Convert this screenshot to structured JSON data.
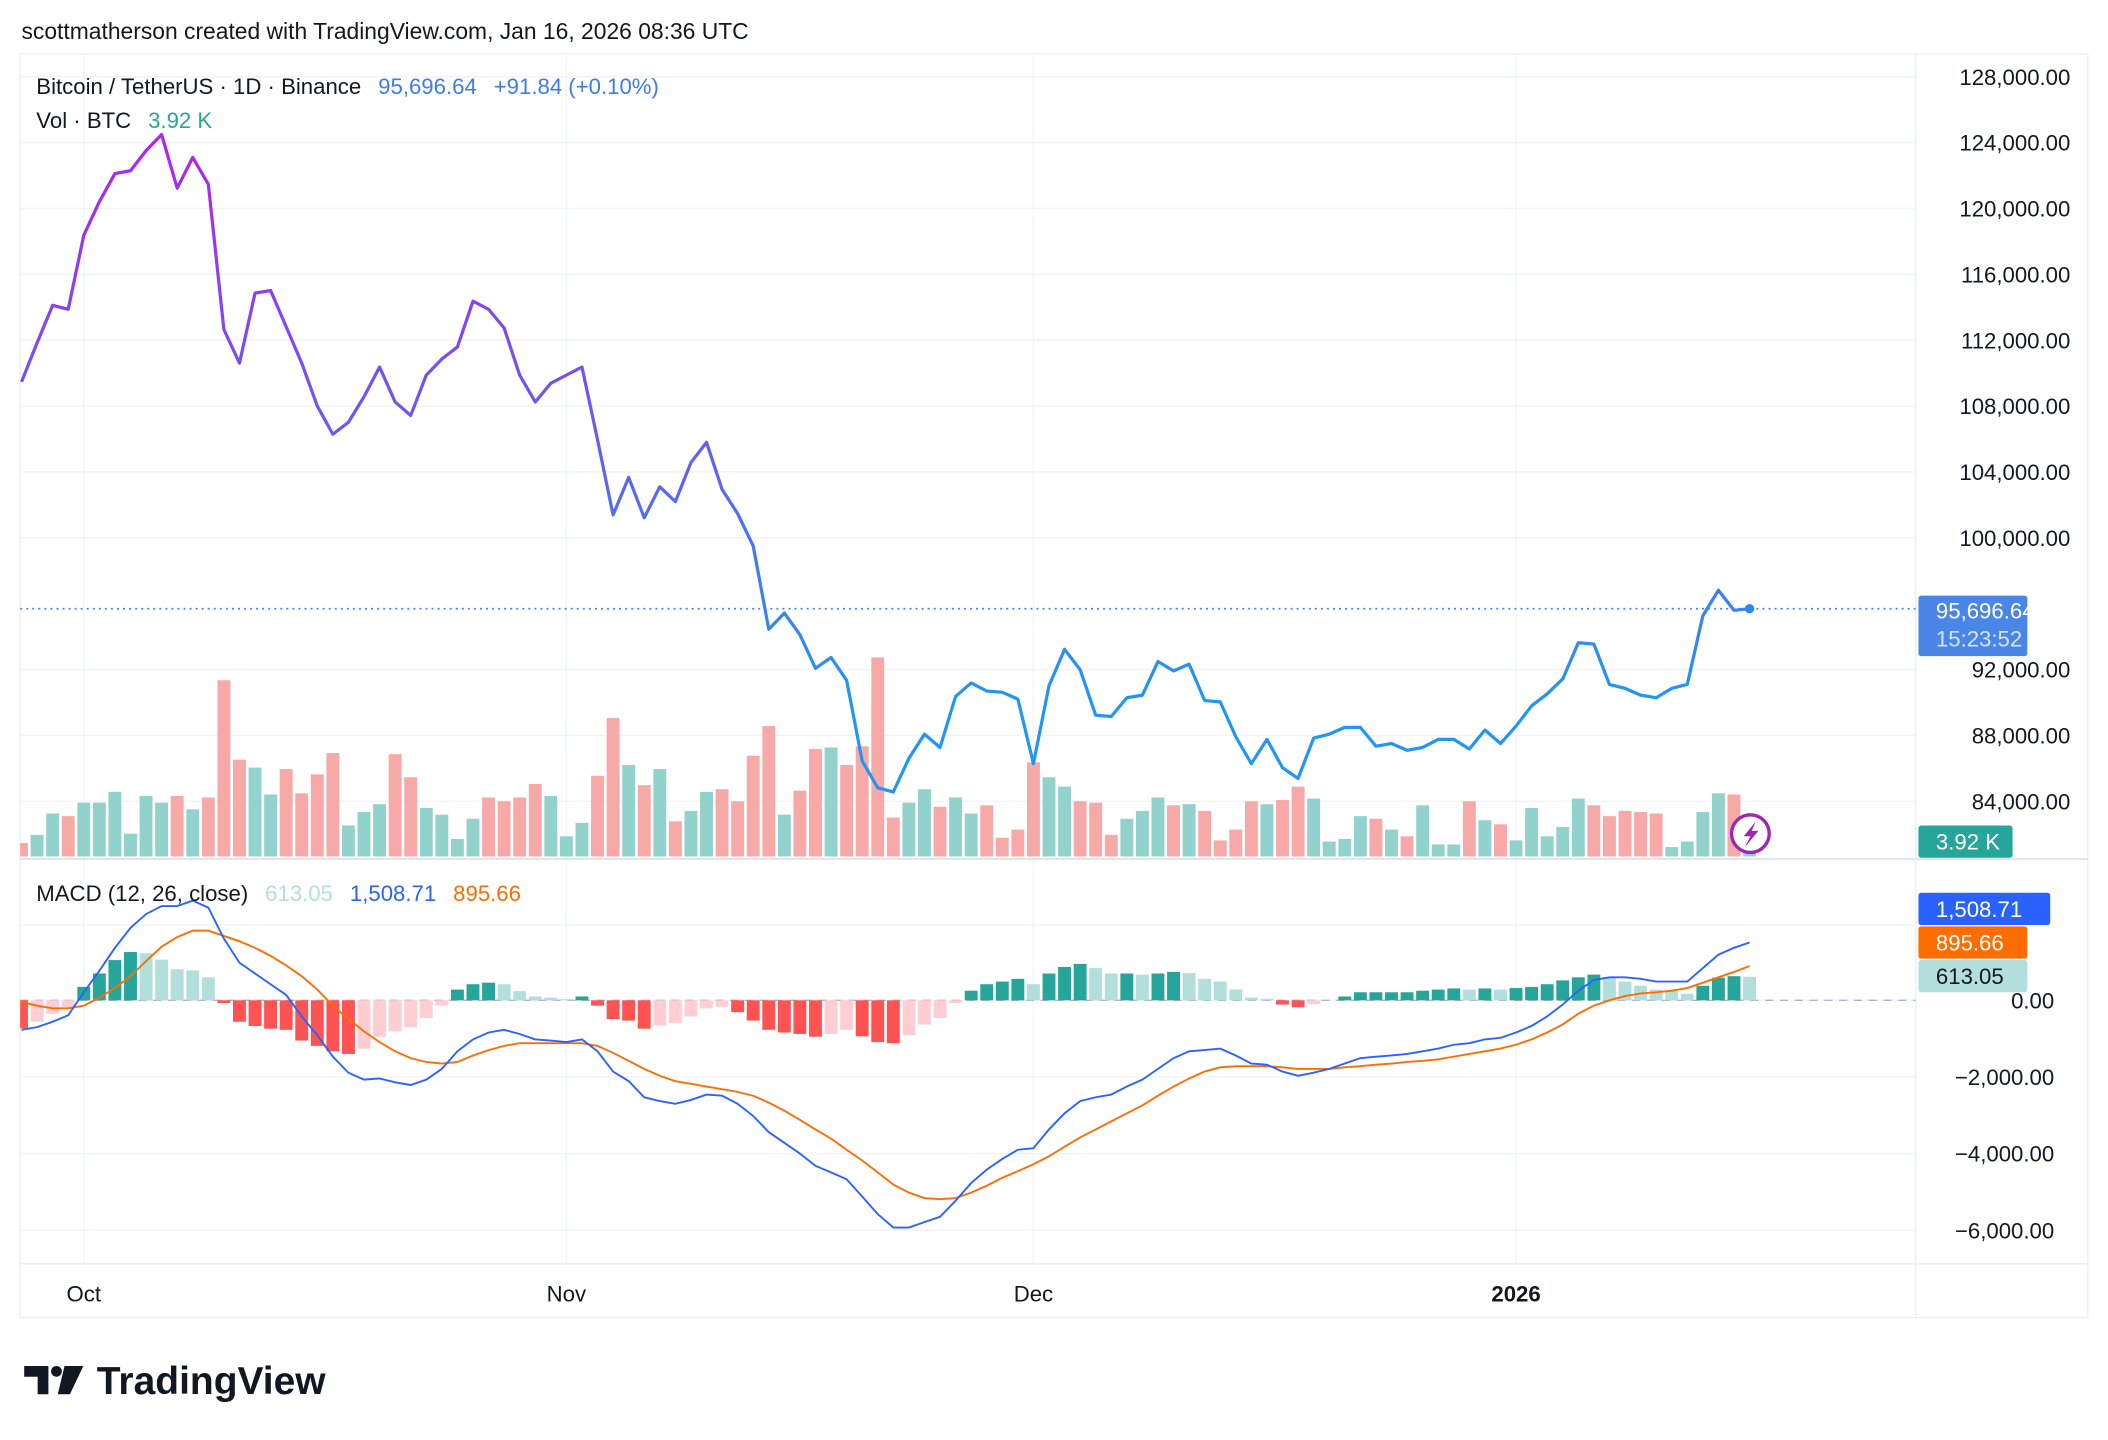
{
  "header": {
    "attribution": "scottmatherson created with TradingView.com, Jan 16, 2026 08:36 UTC"
  },
  "legend": {
    "symbol": "Bitcoin / TetherUS · 1D · Binance",
    "last_price": "95,696.64",
    "change": "+91.84 (+0.10%)",
    "vol_label": "Vol · BTC",
    "vol_value": "3.92 K",
    "macd_label": "MACD (12, 26, close)",
    "macd_hist": "613.05",
    "macd_line": "1,508.71",
    "macd_signal": "895.66"
  },
  "price_axis": {
    "last_price_label": "95,696.64",
    "countdown": "15:23:52",
    "volume_label": "3.92 K",
    "macd_line_label": "1,508.71",
    "macd_signal_label": "895.66",
    "macd_hist_label": "613.05"
  },
  "colors": {
    "price_line_top": "#b023f2",
    "price_line_bottom": "#2196f3",
    "volume_up": "#92d2cc",
    "volume_down": "#f7a9a7",
    "macd_line": "#2962ff",
    "signal_line": "#ff6d00",
    "hist_pos_grow": "#26a69a",
    "hist_pos_fall": "#b2dfdb",
    "hist_neg_fall": "#ff5252",
    "hist_neg_rise": "#ffcdd2",
    "last_price_bg": "#4a86e8",
    "volume_label_bg": "#26a69a",
    "alert_icon": "#9c27b0"
  },
  "logo": {
    "text": "TradingView"
  },
  "chart_data": {
    "type": "line",
    "title": "Bitcoin / TetherUS · 1D · Binance",
    "grid": true,
    "price_ylim": [
      82000,
      130000
    ],
    "price_ticks": [
      {
        "value": 128000,
        "label": "128,000.00"
      },
      {
        "value": 124000,
        "label": "124,000.00"
      },
      {
        "value": 120000,
        "label": "120,000.00"
      },
      {
        "value": 116000,
        "label": "116,000.00"
      },
      {
        "value": 112000,
        "label": "112,000.00"
      },
      {
        "value": 108000,
        "label": "108,000.00"
      },
      {
        "value": 104000,
        "label": "104,000.00"
      },
      {
        "value": 100000,
        "label": "100,000.00"
      },
      {
        "value": 92000,
        "label": "92,000.00"
      },
      {
        "value": 88000,
        "label": "88,000.00"
      },
      {
        "value": 84000,
        "label": "84,000.00"
      }
    ],
    "macd_ticks": [
      {
        "value": 0,
        "label": "0.00"
      },
      {
        "value": -2000,
        "label": "−2,000.00"
      },
      {
        "value": -4000,
        "label": "−4,000.00"
      },
      {
        "value": -6000,
        "label": "−6,000.00"
      }
    ],
    "x_ticks": [
      {
        "date": "2025-10-01",
        "label": "Oct",
        "bold": false
      },
      {
        "date": "2025-11-01",
        "label": "Nov",
        "bold": false
      },
      {
        "date": "2025-12-01",
        "label": "Dec",
        "bold": false
      },
      {
        "date": "2026-01-01",
        "label": "2026",
        "bold": true
      }
    ],
    "dates": [
      "2025-09-27",
      "2025-09-28",
      "2025-09-29",
      "2025-09-30",
      "2025-10-01",
      "2025-10-02",
      "2025-10-03",
      "2025-10-04",
      "2025-10-05",
      "2025-10-06",
      "2025-10-07",
      "2025-10-08",
      "2025-10-09",
      "2025-10-10",
      "2025-10-11",
      "2025-10-12",
      "2025-10-13",
      "2025-10-14",
      "2025-10-15",
      "2025-10-16",
      "2025-10-17",
      "2025-10-18",
      "2025-10-19",
      "2025-10-20",
      "2025-10-21",
      "2025-10-22",
      "2025-10-23",
      "2025-10-24",
      "2025-10-25",
      "2025-10-26",
      "2025-10-27",
      "2025-10-28",
      "2025-10-29",
      "2025-10-30",
      "2025-10-31",
      "2025-11-01",
      "2025-11-02",
      "2025-11-03",
      "2025-11-04",
      "2025-11-05",
      "2025-11-06",
      "2025-11-07",
      "2025-11-08",
      "2025-11-09",
      "2025-11-10",
      "2025-11-11",
      "2025-11-12",
      "2025-11-13",
      "2025-11-14",
      "2025-11-15",
      "2025-11-16",
      "2025-11-17",
      "2025-11-18",
      "2025-11-19",
      "2025-11-20",
      "2025-11-21",
      "2025-11-22",
      "2025-11-23",
      "2025-11-24",
      "2025-11-25",
      "2025-11-26",
      "2025-11-27",
      "2025-11-28",
      "2025-11-29",
      "2025-11-30",
      "2025-12-01",
      "2025-12-02",
      "2025-12-03",
      "2025-12-04",
      "2025-12-05",
      "2025-12-06",
      "2025-12-07",
      "2025-12-08",
      "2025-12-09",
      "2025-12-10",
      "2025-12-11",
      "2025-12-12",
      "2025-12-13",
      "2025-12-14",
      "2025-12-15",
      "2025-12-16",
      "2025-12-17",
      "2025-12-18",
      "2025-12-19",
      "2025-12-20",
      "2025-12-21",
      "2025-12-22",
      "2025-12-23",
      "2025-12-24",
      "2025-12-25",
      "2025-12-26",
      "2025-12-27",
      "2025-12-28",
      "2025-12-29",
      "2025-12-30",
      "2025-12-31",
      "2026-01-01",
      "2026-01-02",
      "2026-01-03",
      "2026-01-04",
      "2026-01-05",
      "2026-01-06",
      "2026-01-07",
      "2026-01-08",
      "2026-01-09",
      "2026-01-10",
      "2026-01-11",
      "2026-01-12",
      "2026-01-13",
      "2026-01-14",
      "2026-01-15",
      "2026-01-16"
    ],
    "close": [
      109470,
      111840,
      114120,
      113880,
      118370,
      120410,
      122120,
      122290,
      123510,
      124490,
      121230,
      123100,
      121470,
      112650,
      110610,
      114860,
      115020,
      112820,
      110610,
      108000,
      106290,
      107020,
      108570,
      110370,
      108250,
      107430,
      109880,
      110860,
      111590,
      114370,
      113880,
      112740,
      109880,
      108250,
      109390,
      109880,
      110370,
      105960,
      101390,
      103670,
      101220,
      103100,
      102200,
      104570,
      105800,
      102940,
      101470,
      99510,
      94450,
      95430,
      94120,
      92080,
      92740,
      91350,
      86450,
      84820,
      84570,
      86610,
      88080,
      87270,
      90370,
      91190,
      90700,
      90620,
      90210,
      86290,
      91020,
      93230,
      92000,
      89230,
      89150,
      90290,
      90450,
      92490,
      91920,
      92330,
      90120,
      90040,
      87920,
      86290,
      87760,
      86040,
      85390,
      87840,
      88080,
      88490,
      88490,
      87350,
      87510,
      87100,
      87270,
      87760,
      87760,
      87180,
      88330,
      87510,
      88570,
      89800,
      90530,
      91430,
      93630,
      93550,
      91100,
      90860,
      90450,
      90290,
      90860,
      91100,
      95270,
      96820,
      95600,
      95696.64
    ],
    "volume_k_btc": [
      4.6,
      7.4,
      14.7,
      13.8,
      18.4,
      18.4,
      22.1,
      7.8,
      20.7,
      18.4,
      20.7,
      16.1,
      20.2,
      60.3,
      33.1,
      30.4,
      21.2,
      29.9,
      21.6,
      28.1,
      35.4,
      10.6,
      15.2,
      17.9,
      35.0,
      27.1,
      16.6,
      14.3,
      6.0,
      12.9,
      20.2,
      18.9,
      20.2,
      24.8,
      20.7,
      6.9,
      11.5,
      27.6,
      47.4,
      31.3,
      24.4,
      29.9,
      12.0,
      15.6,
      22.1,
      23.0,
      18.9,
      34.5,
      44.6,
      14.3,
      22.5,
      36.8,
      37.3,
      31.3,
      37.7,
      68.1,
      13.3,
      18.4,
      23.0,
      17.0,
      20.2,
      14.7,
      17.5,
      6.4,
      9.2,
      32.2,
      27.1,
      23.9,
      18.9,
      18.4,
      7.4,
      12.9,
      15.6,
      20.2,
      17.5,
      17.9,
      15.6,
      5.5,
      9.2,
      18.9,
      17.9,
      19.3,
      23.9,
      19.8,
      5.1,
      6.0,
      13.8,
      12.9,
      9.2,
      6.9,
      17.5,
      4.1,
      4.1,
      18.9,
      12.4,
      11.0,
      5.5,
      16.6,
      6.9,
      10.1,
      19.8,
      17.5,
      13.8,
      15.6,
      15.2,
      14.7,
      3.2,
      5.1,
      15.2,
      21.6,
      21.2,
      3.92
    ],
    "macd": [
      -770,
      -700,
      -560,
      -390,
      210,
      770,
      1370,
      1890,
      2250,
      2460,
      2460,
      2600,
      2420,
      1610,
      980,
      700,
      420,
      140,
      -420,
      -910,
      -1470,
      -1890,
      -2070,
      -2040,
      -2140,
      -2210,
      -2070,
      -1790,
      -1330,
      -1020,
      -840,
      -770,
      -880,
      -1020,
      -1050,
      -1090,
      -1020,
      -1330,
      -1860,
      -2110,
      -2530,
      -2630,
      -2700,
      -2600,
      -2460,
      -2490,
      -2700,
      -3020,
      -3440,
      -3720,
      -4000,
      -4320,
      -4490,
      -4670,
      -5120,
      -5580,
      -5930,
      -5930,
      -5790,
      -5650,
      -5230,
      -4770,
      -4420,
      -4140,
      -3900,
      -3860,
      -3370,
      -2950,
      -2630,
      -2530,
      -2460,
      -2250,
      -2070,
      -1790,
      -1510,
      -1330,
      -1300,
      -1260,
      -1440,
      -1650,
      -1680,
      -1860,
      -1970,
      -1890,
      -1790,
      -1650,
      -1510,
      -1470,
      -1440,
      -1400,
      -1330,
      -1260,
      -1160,
      -1120,
      -1020,
      -980,
      -840,
      -670,
      -420,
      -110,
      250,
      530,
      600,
      600,
      560,
      490,
      490,
      490,
      840,
      1190,
      1370,
      1508.71
    ],
    "signal": [
      -40,
      -140,
      -210,
      -210,
      -140,
      70,
      320,
      630,
      1020,
      1400,
      1650,
      1820,
      1820,
      1680,
      1540,
      1370,
      1160,
      910,
      630,
      280,
      -140,
      -490,
      -810,
      -1090,
      -1330,
      -1510,
      -1610,
      -1650,
      -1610,
      -1440,
      -1300,
      -1190,
      -1120,
      -1120,
      -1120,
      -1120,
      -1120,
      -1190,
      -1370,
      -1580,
      -1790,
      -1970,
      -2110,
      -2180,
      -2250,
      -2320,
      -2390,
      -2490,
      -2670,
      -2880,
      -3120,
      -3370,
      -3610,
      -3900,
      -4180,
      -4490,
      -4810,
      -5020,
      -5160,
      -5190,
      -5160,
      -5020,
      -4840,
      -4630,
      -4460,
      -4280,
      -4070,
      -3820,
      -3580,
      -3370,
      -3160,
      -2950,
      -2740,
      -2490,
      -2250,
      -2040,
      -1860,
      -1750,
      -1720,
      -1720,
      -1720,
      -1750,
      -1790,
      -1790,
      -1790,
      -1750,
      -1720,
      -1680,
      -1650,
      -1610,
      -1580,
      -1540,
      -1470,
      -1400,
      -1330,
      -1260,
      -1160,
      -1020,
      -840,
      -630,
      -350,
      -140,
      0,
      110,
      180,
      210,
      250,
      320,
      460,
      600,
      740,
      895.66
    ]
  }
}
